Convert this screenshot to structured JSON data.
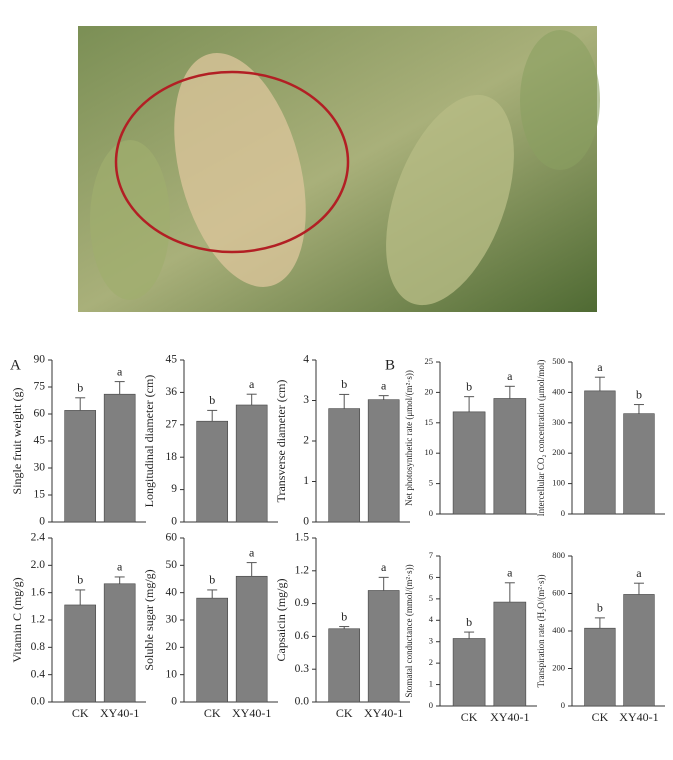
{
  "panels": [
    "A",
    "B"
  ],
  "chart_data": [
    {
      "type": "bar",
      "y_label": "Single fruit weight (g)",
      "categories": [
        null,
        null
      ],
      "values": [
        62,
        71
      ],
      "errors": [
        7,
        7
      ],
      "letters": [
        "b",
        "a"
      ],
      "color": "#808080",
      "ylim": [
        0,
        90
      ],
      "yticks": [
        0,
        15,
        30,
        45,
        60,
        75,
        90
      ]
    },
    {
      "type": "bar",
      "y_label": "Longitudinal diameter (cm)",
      "categories": [
        null,
        null
      ],
      "values": [
        28,
        32.5
      ],
      "errors": [
        3,
        3
      ],
      "letters": [
        "b",
        "a"
      ],
      "color": "#808080",
      "ylim": [
        0,
        45
      ],
      "yticks": [
        0,
        9,
        18,
        27,
        36,
        45
      ]
    },
    {
      "type": "bar",
      "y_label": "Transverse diameter (cm)",
      "categories": [
        null,
        null
      ],
      "values": [
        2.8,
        3.02
      ],
      "errors": [
        0.35,
        0.1
      ],
      "letters": [
        "b",
        "a"
      ],
      "color": "#808080",
      "ylim": [
        0,
        4
      ],
      "yticks": [
        0,
        1,
        2,
        3,
        4
      ]
    },
    {
      "type": "bar",
      "y_label": "Vitamin C (mg/g)",
      "categories": [
        "CK",
        "XY40-1"
      ],
      "values": [
        1.42,
        1.73
      ],
      "errors": [
        0.22,
        0.1
      ],
      "letters": [
        "b",
        "a"
      ],
      "color": "#808080",
      "ylim": [
        0,
        2.4
      ],
      "yticks": [
        {
          "value": 0,
          "label": "0.0"
        },
        0.4,
        0.8,
        1.2,
        1.6,
        {
          "value": 2,
          "label": "2.0"
        },
        2.4
      ]
    },
    {
      "type": "bar",
      "y_label": "Soluble sugar (mg/g)",
      "categories": [
        "CK",
        "XY40-1"
      ],
      "values": [
        38,
        46
      ],
      "errors": [
        3,
        5
      ],
      "letters": [
        "b",
        "a"
      ],
      "color": "#808080",
      "ylim": [
        0,
        60
      ],
      "yticks": [
        0,
        10,
        20,
        30,
        40,
        50,
        60
      ]
    },
    {
      "type": "bar",
      "y_label": "Capsaicin (mg/g)",
      "categories": [
        "CK",
        "XY40-1"
      ],
      "values": [
        0.67,
        1.02
      ],
      "errors": [
        0.02,
        0.12
      ],
      "letters": [
        "b",
        "a"
      ],
      "color": "#808080",
      "ylim": [
        0,
        1.5
      ],
      "yticks": [
        {
          "value": 0,
          "label": "0.0"
        },
        0.3,
        0.6,
        0.9,
        1.2,
        1.5
      ]
    },
    {
      "type": "bar",
      "y_label": "Net photosynthetic rate (μmol/(m²·s))",
      "categories": [
        null,
        null
      ],
      "values": [
        16.8,
        19
      ],
      "errors": [
        2.5,
        2
      ],
      "letters": [
        "b",
        "a"
      ],
      "color": "#808080",
      "ylim": [
        0,
        25
      ],
      "yticks": [
        0,
        5,
        10,
        15,
        20,
        25
      ]
    },
    {
      "type": "bar",
      "y_label": "Intercellular CO₂ concentration (μmol/mol)",
      "categories": [
        null,
        null
      ],
      "values": [
        405,
        330
      ],
      "errors": [
        45,
        30
      ],
      "letters": [
        "a",
        "b"
      ],
      "color": "#808080",
      "ylim": [
        0,
        500
      ],
      "yticks": [
        0,
        100,
        200,
        300,
        400,
        500
      ]
    },
    {
      "type": "bar",
      "y_label": "Stomatal conductance (mmol/(m²·s))",
      "categories": [
        "CK",
        "XY40-1"
      ],
      "values": [
        3.15,
        4.85
      ],
      "errors": [
        0.3,
        0.9
      ],
      "letters": [
        "b",
        "a"
      ],
      "color": "#808080",
      "ylim": [
        0,
        7
      ],
      "yticks": [
        0,
        1,
        2,
        3,
        4,
        5,
        6,
        7
      ]
    },
    {
      "type": "bar",
      "y_label": "Transpiration rate (H₂O/(m²·s))",
      "categories": [
        "CK",
        "XY40-1"
      ],
      "values": [
        415,
        595
      ],
      "errors": [
        55,
        60
      ],
      "letters": [
        "b",
        "a"
      ],
      "color": "#808080",
      "ylim": [
        0,
        800
      ],
      "yticks": [
        0,
        200,
        400,
        600,
        800
      ]
    }
  ]
}
